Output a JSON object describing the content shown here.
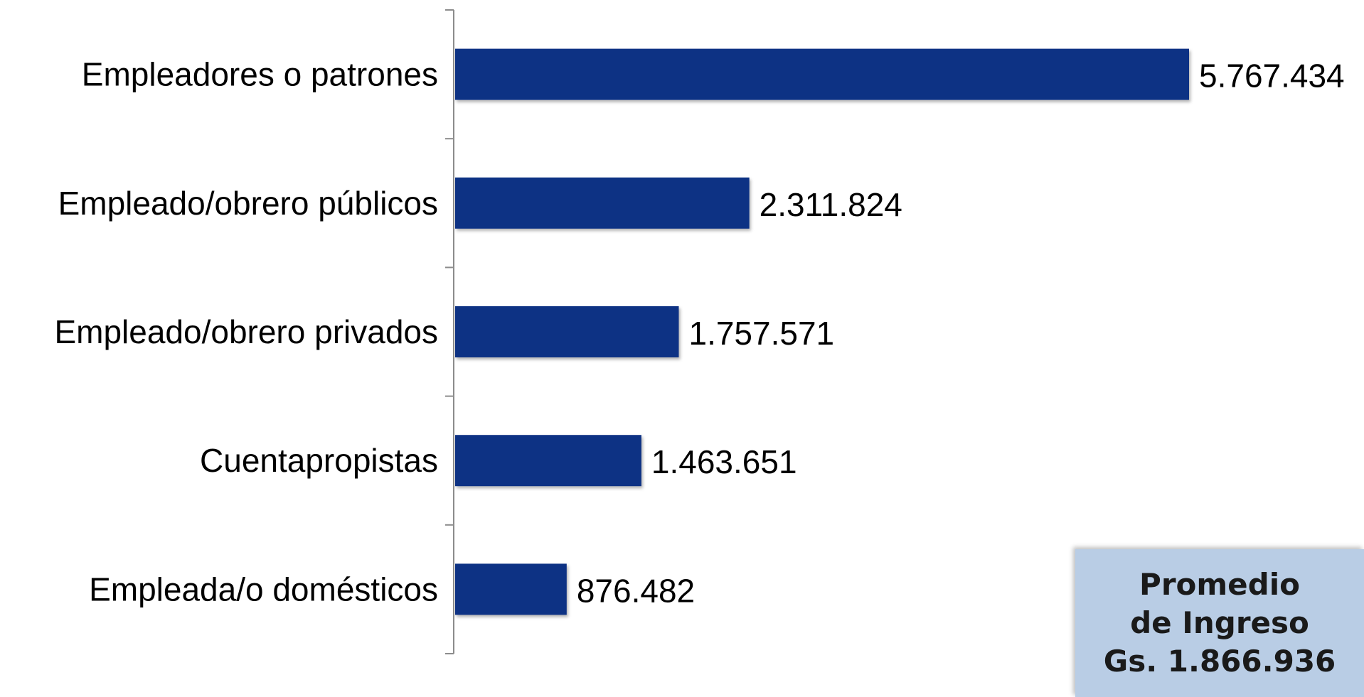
{
  "chart_data": {
    "type": "bar",
    "orientation": "horizontal",
    "categories": [
      "Empleadores o patrones",
      "Empleado/obrero públicos",
      "Empleado/obrero privados",
      "Cuentapropistas",
      "Empleada/o domésticos"
    ],
    "values": [
      5767434,
      2311824,
      1757571,
      1463651,
      876482
    ],
    "value_labels": [
      "5.767.434",
      "2.311.824",
      "1.757.571",
      "1.463.651",
      "876.482"
    ],
    "title": "",
    "xlabel": "",
    "ylabel": "",
    "xlim": [
      0,
      5767434
    ],
    "grid": false,
    "legend": "none",
    "bar_color": "#0e3184",
    "axis_color": "#8c8c8c"
  },
  "summary_box": {
    "line1": "Promedio",
    "line2": "de Ingreso",
    "line3": "Gs. 1.866.936",
    "background": "#b9cde5"
  }
}
